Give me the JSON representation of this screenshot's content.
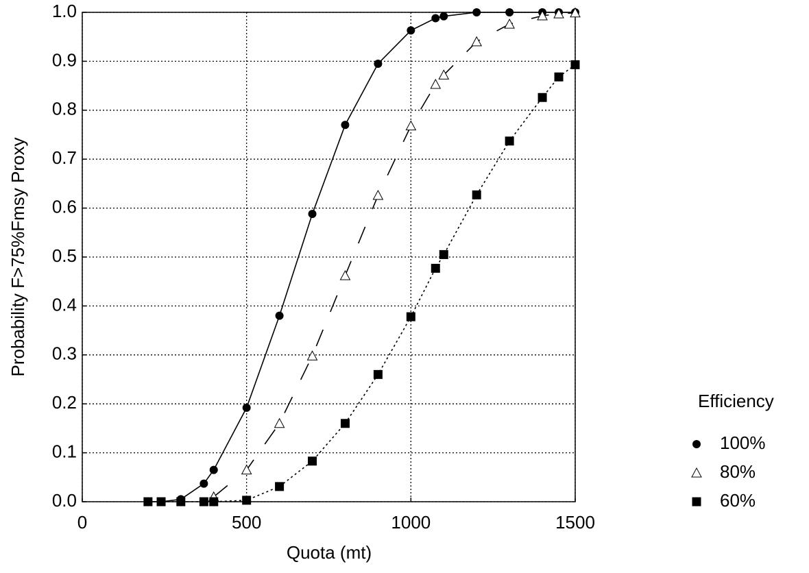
{
  "chart_data": {
    "type": "line",
    "x_label": "Quota (mt)",
    "y_label": "Probability F>75%Fmsy Proxy",
    "legend_title": "Efficiency",
    "legend": "right",
    "grid": true,
    "xlim": [
      0,
      1500
    ],
    "xticks": [
      0,
      500,
      1000,
      1500
    ],
    "ylim": [
      0,
      1
    ],
    "yticks": [
      {
        "value": 0,
        "label": "0.0"
      },
      {
        "value": 0.1,
        "label": "0.1"
      },
      {
        "value": 0.2,
        "label": "0.2"
      },
      {
        "value": 0.3,
        "label": "0.3"
      },
      {
        "value": 0.4,
        "label": "0.4"
      },
      {
        "value": 0.5,
        "label": "0.5"
      },
      {
        "value": 0.6,
        "label": "0.6"
      },
      {
        "value": 0.7,
        "label": "0.7"
      },
      {
        "value": 0.8,
        "label": "0.8"
      },
      {
        "value": 0.9,
        "label": "0.9"
      },
      {
        "value": 1,
        "label": "1.0"
      }
    ],
    "series": [
      {
        "name": "100%",
        "color": "#000000",
        "marker": "circle",
        "dash": "solid",
        "x": [
          200,
          240,
          300,
          370,
          400,
          500,
          600,
          700,
          800,
          900,
          1000,
          1075,
          1100,
          1200,
          1300,
          1400,
          1450,
          1500
        ],
        "values": [
          0,
          0,
          0.005,
          0.037,
          0.065,
          0.192,
          0.38,
          0.588,
          0.77,
          0.895,
          0.963,
          0.988,
          0.992,
          1.0,
          1.0,
          1.0,
          1.0,
          1.0
        ]
      },
      {
        "name": "80%",
        "color": "#000000",
        "marker": "triangle",
        "dash": "dashed",
        "x": [
          400,
          500,
          600,
          700,
          800,
          900,
          1000,
          1075,
          1100,
          1200,
          1300,
          1400,
          1450,
          1500
        ],
        "values": [
          0.01,
          0.065,
          0.16,
          0.298,
          0.462,
          0.626,
          0.768,
          0.853,
          0.872,
          0.94,
          0.976,
          0.993,
          0.997,
          0.999
        ]
      },
      {
        "name": "60%",
        "color": "#000000",
        "marker": "square",
        "dash": "dotted",
        "x": [
          200,
          240,
          300,
          370,
          400,
          500,
          600,
          700,
          800,
          900,
          1000,
          1075,
          1100,
          1200,
          1300,
          1400,
          1450,
          1500
        ],
        "values": [
          0,
          0,
          0,
          0,
          0,
          0.003,
          0.031,
          0.083,
          0.16,
          0.26,
          0.378,
          0.477,
          0.505,
          0.627,
          0.737,
          0.826,
          0.868,
          0.893
        ]
      }
    ]
  }
}
